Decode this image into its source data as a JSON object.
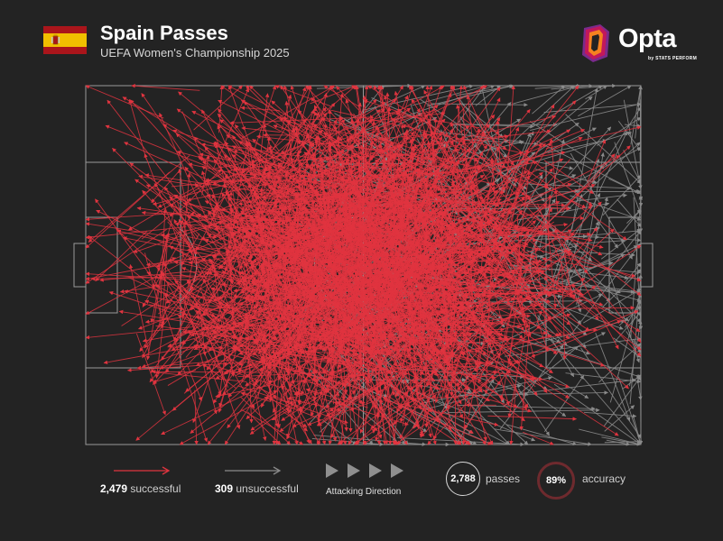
{
  "header": {
    "title": "Spain Passes",
    "subtitle": "UEFA Women's Championship 2025"
  },
  "logo": {
    "word": "Opta",
    "sub": "by STATS PERFORM",
    "colors": {
      "orange": "#F58220",
      "magenta": "#C2185B",
      "purple": "#7B2A8C"
    }
  },
  "colors": {
    "background": "#232323",
    "successful": "#E0343F",
    "unsuccessful": "#8A8A8A",
    "pitch_lines": "#9a9a9a",
    "flag_red": "#AA151B",
    "flag_yellow": "#F1BF00",
    "accuracy_ring": "#7a2a2f"
  },
  "legend": {
    "successful_count": "2,479",
    "successful_label": "successful",
    "unsuccessful_count": "309",
    "unsuccessful_label": "unsuccessful",
    "direction_label": "Attacking Direction"
  },
  "stats": {
    "passes_value": "2,788",
    "passes_label": "passes",
    "accuracy_value": "89%",
    "accuracy_label": "accuracy"
  },
  "chart_data": {
    "type": "pass-map",
    "pitch": {
      "length": 105,
      "width": 68
    },
    "attacking_direction": "left-to-right",
    "totals": {
      "successful": 2479,
      "unsuccessful": 309,
      "passes": 2788,
      "accuracy_pct": 89
    },
    "series": [
      {
        "name": "successful",
        "count": 2479,
        "color": "#E0343F"
      },
      {
        "name": "unsuccessful",
        "count": 309,
        "color": "#8A8A8A"
      }
    ]
  }
}
